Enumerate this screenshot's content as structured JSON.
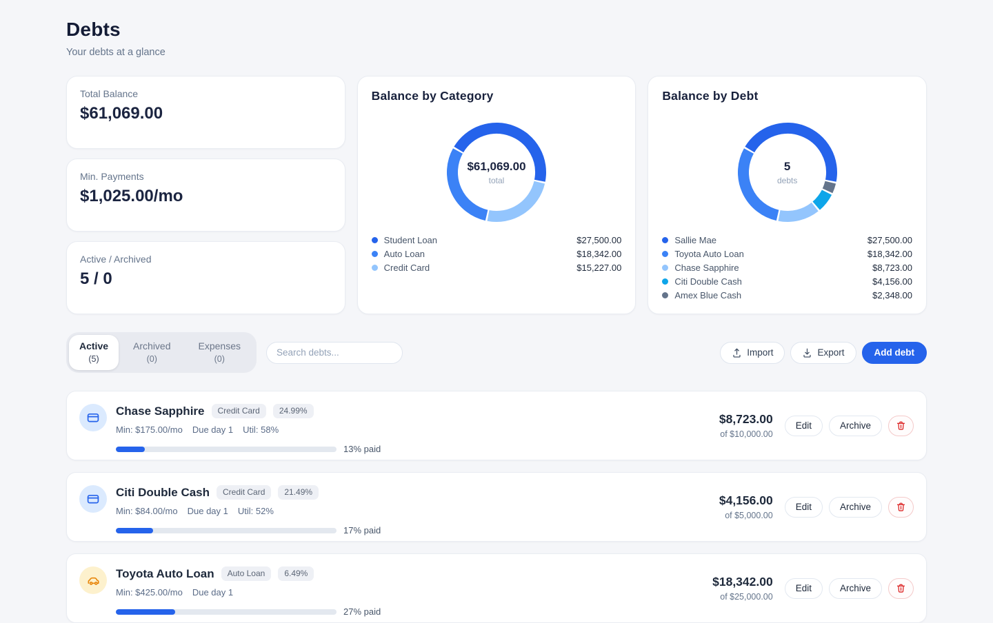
{
  "page": {
    "title": "Debts",
    "subtitle": "Your debts at a glance"
  },
  "stats": [
    {
      "label": "Total Balance",
      "value": "$61,069.00"
    },
    {
      "label": "Min. Payments",
      "value": "$1,025.00/mo"
    },
    {
      "label": "Active / Archived",
      "value": "5 / 0"
    }
  ],
  "chart_data": [
    {
      "type": "pie",
      "title": "Balance by Category",
      "center_value": "$61,069.00",
      "center_label": "total",
      "start_angle": -60,
      "total": 61069.0,
      "slices": [
        {
          "label": "Student Loan",
          "value": 27500.0,
          "display": "$27,500.00",
          "color": "#2563eb"
        },
        {
          "label": "Auto Loan",
          "value": 18342.0,
          "display": "$18,342.00",
          "color": "#3b82f6"
        },
        {
          "label": "Credit Card",
          "value": 15227.0,
          "display": "$15,227.00",
          "color": "#93c5fd"
        }
      ]
    },
    {
      "type": "pie",
      "title": "Balance by Debt",
      "center_value": "5",
      "center_label": "debts",
      "start_angle": -60,
      "total": 61069.0,
      "slices": [
        {
          "label": "Sallie Mae",
          "value": 27500.0,
          "display": "$27,500.00",
          "color": "#2563eb"
        },
        {
          "label": "Toyota Auto Loan",
          "value": 18342.0,
          "display": "$18,342.00",
          "color": "#3b82f6"
        },
        {
          "label": "Chase Sapphire",
          "value": 8723.0,
          "display": "$8,723.00",
          "color": "#93c5fd"
        },
        {
          "label": "Citi Double Cash",
          "value": 4156.0,
          "display": "$4,156.00",
          "color": "#0ea5e9"
        },
        {
          "label": "Amex Blue Cash",
          "value": 2348.0,
          "display": "$2,348.00",
          "color": "#64748b"
        }
      ]
    }
  ],
  "toolbar": {
    "tabs": [
      {
        "label": "Active",
        "count": "(5)"
      },
      {
        "label": "Archived",
        "count": "(0)"
      },
      {
        "label": "Expenses",
        "count": "(0)"
      }
    ],
    "search_placeholder": "Search debts...",
    "import_label": "Import",
    "export_label": "Export",
    "add_label": "Add debt"
  },
  "actions": {
    "edit": "Edit",
    "archive": "Archive"
  },
  "debts": [
    {
      "name": "Chase Sapphire",
      "category": "Credit Card",
      "apr": "24.99%",
      "icon": "credit-card",
      "meta": [
        "Min: $175.00/mo",
        "Due day 1",
        "Util: 58%"
      ],
      "progress_pct": 13,
      "progress_label": "13% paid",
      "balance": "$8,723.00",
      "of_total": "of $10,000.00"
    },
    {
      "name": "Citi Double Cash",
      "category": "Credit Card",
      "apr": "21.49%",
      "icon": "credit-card",
      "meta": [
        "Min: $84.00/mo",
        "Due day 1",
        "Util: 52%"
      ],
      "progress_pct": 17,
      "progress_label": "17% paid",
      "balance": "$4,156.00",
      "of_total": "of $5,000.00"
    },
    {
      "name": "Toyota Auto Loan",
      "category": "Auto Loan",
      "apr": "6.49%",
      "icon": "car",
      "meta": [
        "Min: $425.00/mo",
        "Due day 1"
      ],
      "progress_pct": 27,
      "progress_label": "27% paid",
      "balance": "$18,342.00",
      "of_total": "of $25,000.00"
    }
  ]
}
